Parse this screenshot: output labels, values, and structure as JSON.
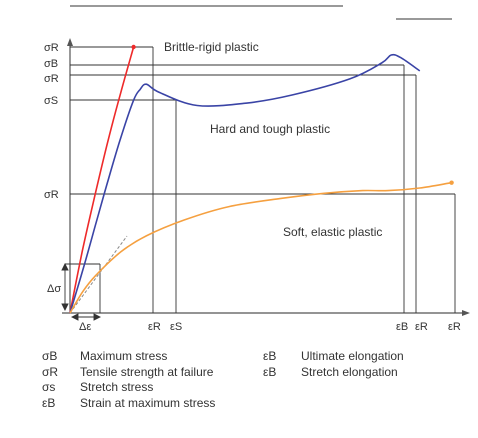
{
  "chart_data": {
    "type": "line",
    "title": "",
    "xlabel": "",
    "ylabel": "",
    "grid": false,
    "y_ticks": [
      "σR",
      "σB",
      "σR",
      "σS",
      "σR",
      "Δσ"
    ],
    "x_ticks": [
      "Δε",
      "εR",
      "εS",
      "εB",
      "εR",
      "εR"
    ],
    "series": [
      {
        "name": "Brittle-rigid plastic",
        "color": "#ee2a2a",
        "x": [
          0,
          0.2,
          0.4,
          0.6,
          0.8,
          1.0
        ],
        "y": [
          0,
          0.24,
          0.45,
          0.65,
          0.83,
          1.0
        ]
      },
      {
        "name": "Hard and tough plastic",
        "color": "#3a44a6",
        "x": [
          0,
          0.2,
          0.4,
          0.6,
          0.8,
          1.0,
          1.1,
          1.2,
          1.4,
          2.0,
          2.8,
          3.5,
          4.4,
          4.9,
          5.05,
          5.2,
          5.5
        ],
        "y": [
          0,
          0.16,
          0.33,
          0.5,
          0.66,
          0.8,
          0.84,
          0.86,
          0.83,
          0.78,
          0.79,
          0.82,
          0.88,
          0.94,
          0.97,
          0.96,
          0.91
        ]
      },
      {
        "name": "Soft, elastic plastic",
        "color": "#f5a040",
        "x": [
          0,
          0.2,
          0.4,
          0.8,
          1.2,
          1.8,
          2.5,
          3.3,
          4.0,
          4.6,
          5.0,
          5.5,
          6.0
        ],
        "y": [
          0,
          0.08,
          0.14,
          0.23,
          0.29,
          0.35,
          0.4,
          0.43,
          0.45,
          0.46,
          0.46,
          0.47,
          0.49
        ]
      }
    ],
    "legend": [
      {
        "symbol": "σB",
        "text": "Maximum stress"
      },
      {
        "symbol": "σR",
        "text": "Tensile strength at failure"
      },
      {
        "symbol": "σs",
        "text": "Stretch stress"
      },
      {
        "symbol": "εB",
        "text": "Strain at maximum stress"
      },
      {
        "symbol": "εB",
        "text": "Ultimate elongation"
      },
      {
        "symbol": "εB",
        "text": "Stretch elongation"
      }
    ],
    "colors": {
      "axis": "#555555",
      "guide": "#333333",
      "dashed": "#888888"
    }
  }
}
